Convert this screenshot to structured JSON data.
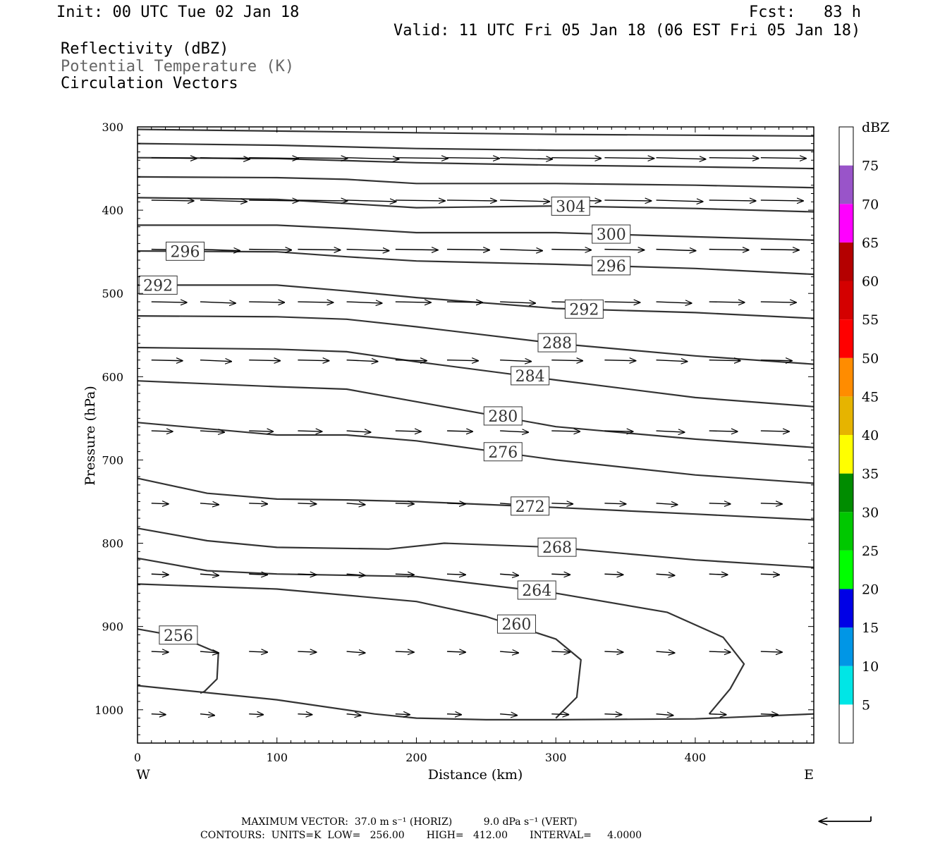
{
  "header": {
    "init": "Init: 00 UTC Tue 02 Jan 18",
    "fcst": "Fcst:   83 h",
    "valid": "Valid: 11 UTC Fri 05 Jan 18 (06 EST Fri 05 Jan 18)",
    "field1": "Reflectivity (dBZ)",
    "field2": "Potential Temperature (K)",
    "field3": "Circulation Vectors"
  },
  "footer": {
    "max_vector": "MAXIMUM VECTOR:  37.0 m s⁻¹ (HORIZ)          9.0 dPa s⁻¹ (VERT)",
    "contours": "CONTOURS:  UNITS=K  LOW=   256.00       HIGH=   412.00       INTERVAL=     4.0000"
  },
  "colors": {
    "contour": "#333333",
    "vector": "#000000",
    "frame": "#000000"
  },
  "chart_data": {
    "type": "line",
    "xlabel": "Distance (km)",
    "ylabel": "Pressure (hPa)",
    "xlim": [
      0,
      485
    ],
    "ylim": [
      1040,
      300
    ],
    "y_scale": "linear",
    "x_ticks": [
      "0",
      "100",
      "200",
      "300",
      "400"
    ],
    "y_ticks": [
      "300",
      "400",
      "500",
      "600",
      "700",
      "800",
      "900",
      "1000"
    ],
    "x_tick_values": [
      0,
      100,
      200,
      300,
      400
    ],
    "y_tick_values": [
      300,
      400,
      500,
      600,
      700,
      800,
      900,
      1000
    ],
    "x_end_labels": {
      "west": "W",
      "east": "E"
    },
    "colorbar": {
      "unit": "dBZ",
      "labels": [
        "5",
        "10",
        "15",
        "20",
        "25",
        "30",
        "35",
        "40",
        "45",
        "50",
        "55",
        "60",
        "65",
        "70",
        "75"
      ],
      "colors": [
        "#ffffff",
        "#00e6e6",
        "#0096e6",
        "#0000e6",
        "#00ff00",
        "#00c800",
        "#008c00",
        "#ffff00",
        "#e6b400",
        "#ff8c00",
        "#ff0000",
        "#d40000",
        "#b40000",
        "#ff00ff",
        "#9954c9",
        "#ffffff"
      ]
    },
    "contours": [
      {
        "label": "",
        "points": [
          [
            0,
            303
          ],
          [
            100,
            305
          ],
          [
            200,
            307
          ],
          [
            300,
            309
          ],
          [
            400,
            310
          ],
          [
            485,
            311
          ]
        ]
      },
      {
        "label": "",
        "points": [
          [
            0,
            320
          ],
          [
            100,
            322
          ],
          [
            200,
            326
          ],
          [
            300,
            328
          ],
          [
            400,
            328
          ],
          [
            485,
            328
          ]
        ]
      },
      {
        "label": "",
        "points": [
          [
            0,
            337
          ],
          [
            100,
            338
          ],
          [
            200,
            343
          ],
          [
            300,
            346
          ],
          [
            400,
            348
          ],
          [
            485,
            350
          ]
        ]
      },
      {
        "label": "",
        "points": [
          [
            0,
            360
          ],
          [
            100,
            361
          ],
          [
            150,
            363
          ],
          [
            200,
            368
          ],
          [
            300,
            368
          ],
          [
            400,
            370
          ],
          [
            485,
            373
          ]
        ]
      },
      {
        "label": "304",
        "points": [
          [
            0,
            385
          ],
          [
            100,
            387
          ],
          [
            150,
            392
          ],
          [
            200,
            397
          ],
          [
            300,
            395
          ],
          [
            400,
            398
          ],
          [
            485,
            402
          ]
        ]
      },
      {
        "label": "300",
        "points": [
          [
            0,
            418
          ],
          [
            100,
            418
          ],
          [
            150,
            422
          ],
          [
            200,
            427
          ],
          [
            300,
            427
          ],
          [
            400,
            432
          ],
          [
            485,
            436
          ]
        ]
      },
      {
        "label": "296",
        "points": [
          [
            0,
            449
          ],
          [
            100,
            450
          ],
          [
            150,
            456
          ],
          [
            200,
            461
          ],
          [
            300,
            465
          ],
          [
            400,
            470
          ],
          [
            485,
            477
          ]
        ]
      },
      {
        "label": "292",
        "points": [
          [
            0,
            490
          ],
          [
            100,
            490
          ],
          [
            150,
            497
          ],
          [
            200,
            505
          ],
          [
            300,
            518
          ],
          [
            400,
            523
          ],
          [
            485,
            530
          ]
        ]
      },
      {
        "label": "288",
        "points": [
          [
            0,
            527
          ],
          [
            100,
            528
          ],
          [
            150,
            531
          ],
          [
            200,
            540
          ],
          [
            300,
            560
          ],
          [
            400,
            575
          ],
          [
            485,
            585
          ]
        ]
      },
      {
        "label": "284",
        "points": [
          [
            0,
            565
          ],
          [
            100,
            567
          ],
          [
            150,
            570
          ],
          [
            200,
            582
          ],
          [
            300,
            604
          ],
          [
            400,
            625
          ],
          [
            485,
            636
          ]
        ]
      },
      {
        "label": "280",
        "points": [
          [
            0,
            605
          ],
          [
            100,
            612
          ],
          [
            150,
            615
          ],
          [
            200,
            630
          ],
          [
            300,
            660
          ],
          [
            400,
            675
          ],
          [
            485,
            685
          ]
        ]
      },
      {
        "label": "276",
        "points": [
          [
            0,
            655
          ],
          [
            100,
            670
          ],
          [
            150,
            670
          ],
          [
            200,
            677
          ],
          [
            300,
            700
          ],
          [
            400,
            718
          ],
          [
            485,
            728
          ]
        ]
      },
      {
        "label": "272",
        "points": [
          [
            0,
            722
          ],
          [
            50,
            740
          ],
          [
            100,
            747
          ],
          [
            150,
            748
          ],
          [
            200,
            750
          ],
          [
            300,
            757
          ],
          [
            400,
            765
          ],
          [
            485,
            772
          ]
        ]
      },
      {
        "label": "268",
        "points": [
          [
            0,
            782
          ],
          [
            50,
            797
          ],
          [
            100,
            805
          ],
          [
            180,
            807
          ],
          [
            220,
            800
          ],
          [
            300,
            805
          ],
          [
            400,
            820
          ],
          [
            485,
            829
          ]
        ]
      },
      {
        "label": "264",
        "points": [
          [
            0,
            818
          ],
          [
            50,
            833
          ],
          [
            100,
            837
          ],
          [
            200,
            840
          ],
          [
            260,
            852
          ],
          [
            300,
            860
          ],
          [
            380,
            883
          ],
          [
            420,
            913
          ],
          [
            435,
            945
          ],
          [
            425,
            975
          ],
          [
            410,
            1005
          ]
        ]
      },
      {
        "label": "260",
        "points": [
          [
            0,
            849
          ],
          [
            100,
            855
          ],
          [
            200,
            870
          ],
          [
            250,
            888
          ],
          [
            300,
            915
          ],
          [
            318,
            940
          ],
          [
            315,
            985
          ],
          [
            300,
            1010
          ]
        ]
      },
      {
        "label": "256",
        "points": [
          [
            0,
            903
          ],
          [
            30,
            912
          ],
          [
            58,
            932
          ],
          [
            57,
            963
          ],
          [
            48,
            978
          ],
          [
            45,
            980
          ]
        ]
      },
      {
        "label": "",
        "points": [
          [
            0,
            971
          ],
          [
            100,
            988
          ],
          [
            170,
            1005
          ],
          [
            200,
            1010
          ],
          [
            250,
            1012
          ],
          [
            300,
            1012
          ],
          [
            400,
            1011
          ],
          [
            485,
            1005
          ]
        ]
      }
    ],
    "vectors": {
      "rows": [
        {
          "p": 337,
          "u": [
            32,
            35,
            35,
            35,
            37,
            37,
            37,
            37,
            35,
            35,
            35,
            35,
            32
          ]
        },
        {
          "p": 388,
          "u": [
            30,
            33,
            35,
            35,
            35,
            35,
            35,
            35,
            35,
            33,
            33,
            33,
            30
          ]
        },
        {
          "p": 447,
          "u": [
            27,
            28,
            30,
            30,
            30,
            30,
            30,
            30,
            28,
            28,
            28,
            28,
            27
          ]
        },
        {
          "p": 510,
          "u": [
            25,
            25,
            25,
            25,
            25,
            25,
            25,
            25,
            25,
            25,
            25,
            25,
            25
          ]
        },
        {
          "p": 580,
          "u": [
            22,
            22,
            22,
            22,
            22,
            22,
            22,
            22,
            22,
            22,
            22,
            22,
            22
          ]
        },
        {
          "p": 665,
          "u": [
            15,
            17,
            17,
            17,
            17,
            18,
            18,
            20,
            20,
            20,
            20,
            20,
            20
          ]
        },
        {
          "p": 752,
          "u": [
            12,
            13,
            13,
            13,
            13,
            13,
            13,
            13,
            15,
            15,
            15,
            15,
            15
          ]
        },
        {
          "p": 837,
          "u": [
            12,
            13,
            13,
            13,
            13,
            13,
            13,
            13,
            13,
            13,
            13,
            13,
            13
          ]
        },
        {
          "p": 930,
          "u": [
            12,
            13,
            13,
            13,
            13,
            13,
            13,
            13,
            13,
            13,
            13,
            15,
            15
          ]
        },
        {
          "p": 1005,
          "u": [
            10,
            10,
            10,
            10,
            10,
            10,
            10,
            12,
            12,
            12,
            12,
            12,
            12
          ]
        }
      ],
      "x_positions": [
        10,
        45,
        80,
        115,
        150,
        185,
        222,
        260,
        297,
        335,
        372,
        410,
        447
      ]
    }
  }
}
